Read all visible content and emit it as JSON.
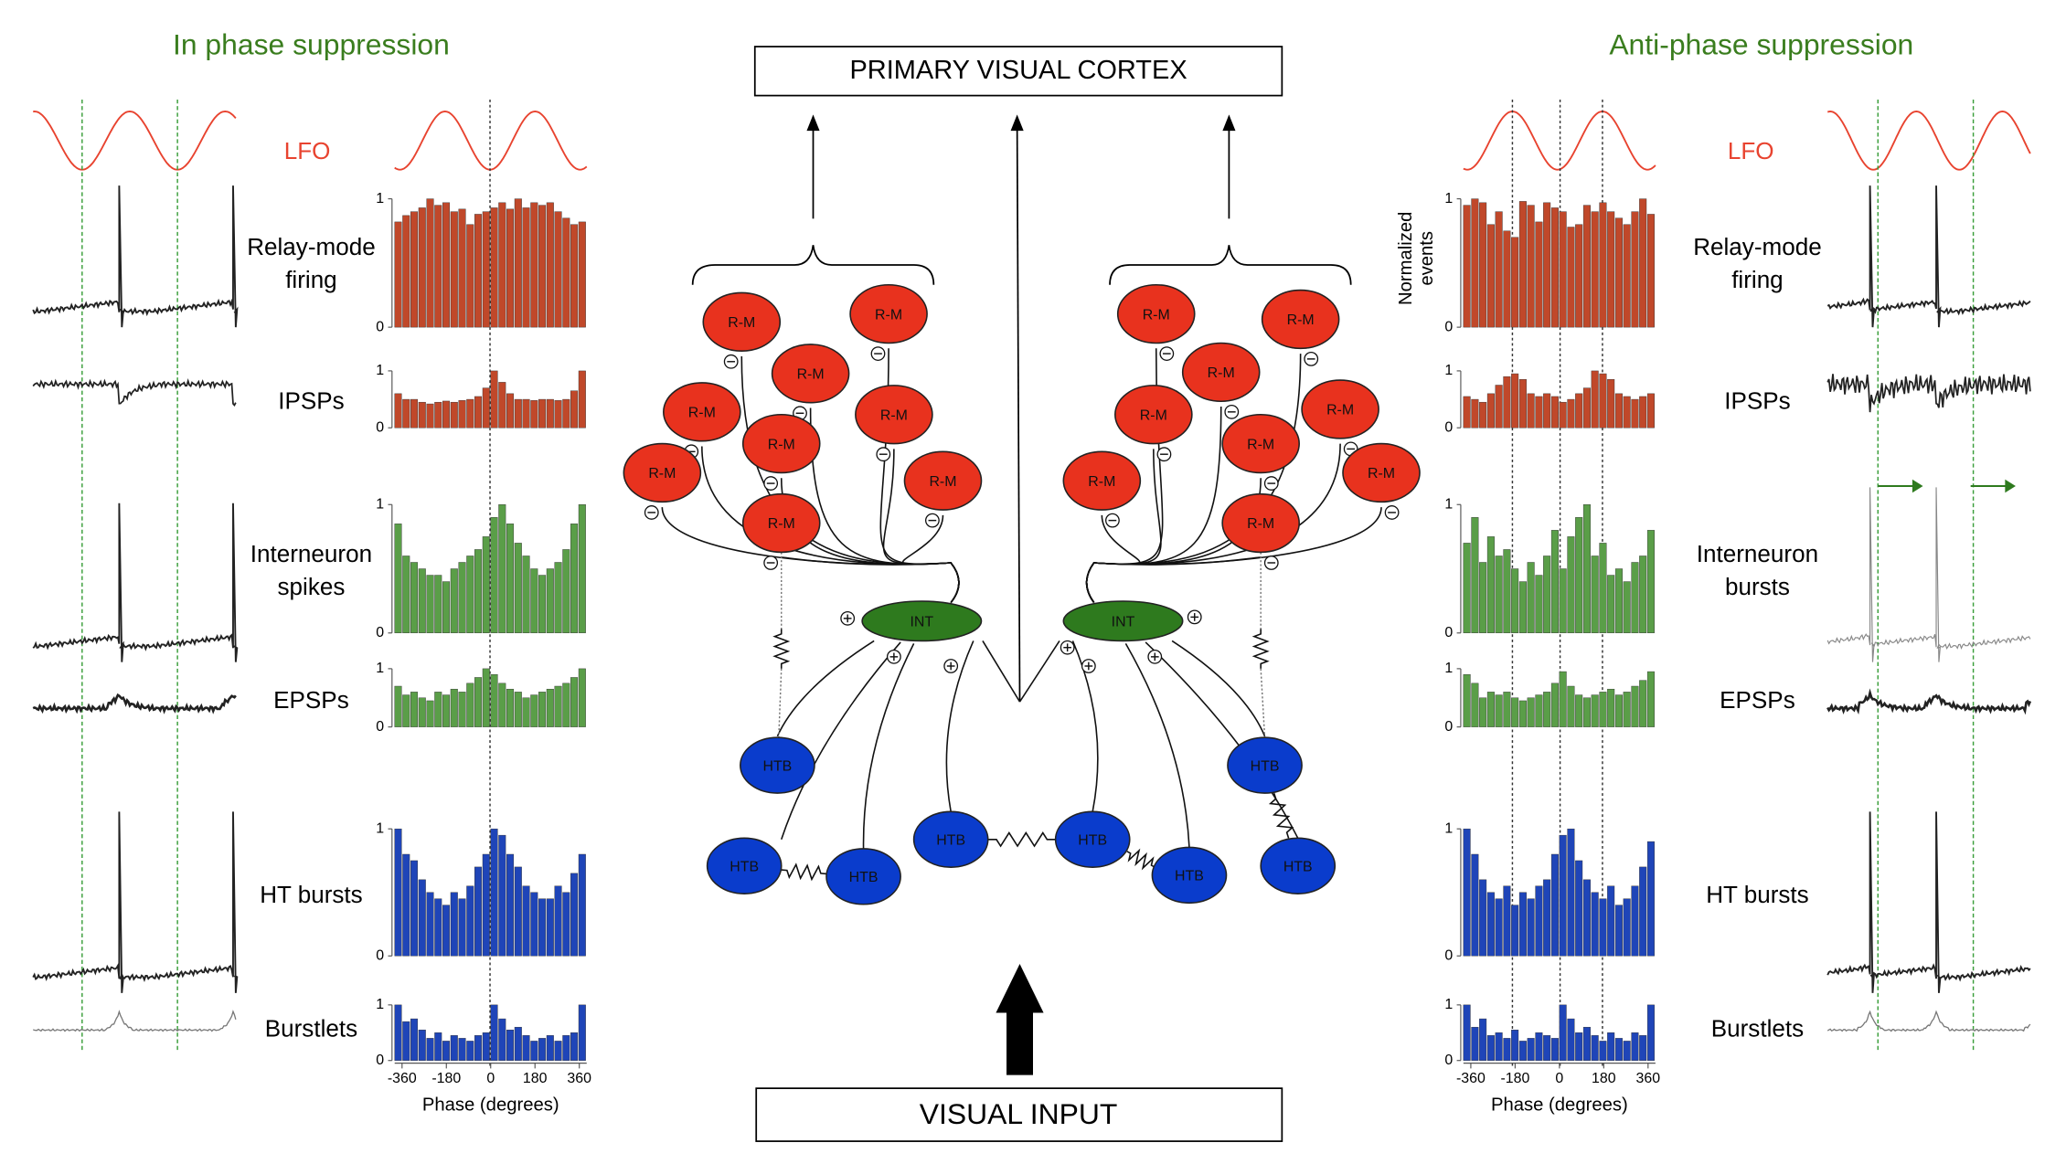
{
  "left": {
    "title": "In phase suppression",
    "lfo": "LFO",
    "rows": [
      {
        "label": [
          "Relay-mode",
          "firing"
        ],
        "color": "#c0482a",
        "values": [
          0.82,
          0.87,
          0.9,
          0.93,
          1,
          0.95,
          0.97,
          0.9,
          0.92,
          0.8,
          0.88,
          0.9,
          0.93,
          0.97,
          0.92,
          1,
          0.93,
          0.97,
          0.95,
          0.97,
          0.9,
          0.85,
          0.8,
          0.82
        ]
      },
      {
        "label": [
          "IPSPs"
        ],
        "color": "#c0482a",
        "values": [
          0.6,
          0.5,
          0.5,
          0.45,
          0.42,
          0.45,
          0.47,
          0.45,
          0.48,
          0.5,
          0.55,
          0.7,
          1,
          0.8,
          0.6,
          0.5,
          0.5,
          0.48,
          0.5,
          0.5,
          0.48,
          0.5,
          0.65,
          1
        ]
      },
      {
        "label": [
          "Interneuron",
          "spikes"
        ],
        "color": "#5a9e48",
        "values": [
          0.85,
          0.6,
          0.55,
          0.5,
          0.45,
          0.45,
          0.4,
          0.5,
          0.55,
          0.6,
          0.65,
          0.75,
          0.9,
          1,
          0.85,
          0.7,
          0.6,
          0.5,
          0.45,
          0.5,
          0.55,
          0.65,
          0.85,
          1
        ]
      },
      {
        "label": [
          "EPSPs"
        ],
        "color": "#5a9e48",
        "values": [
          0.7,
          0.55,
          0.6,
          0.5,
          0.45,
          0.6,
          0.55,
          0.65,
          0.6,
          0.75,
          0.85,
          1,
          0.9,
          0.75,
          0.65,
          0.6,
          0.5,
          0.55,
          0.6,
          0.65,
          0.7,
          0.75,
          0.85,
          1
        ]
      },
      {
        "label": [
          "HT bursts"
        ],
        "color": "#1f45b8",
        "values": [
          1,
          0.8,
          0.75,
          0.6,
          0.5,
          0.45,
          0.4,
          0.5,
          0.45,
          0.55,
          0.7,
          0.8,
          1,
          0.95,
          0.8,
          0.7,
          0.55,
          0.5,
          0.45,
          0.45,
          0.55,
          0.5,
          0.65,
          0.8
        ]
      },
      {
        "label": [
          "Burstlets"
        ],
        "color": "#1f45b8",
        "values": [
          1,
          0.7,
          0.75,
          0.55,
          0.4,
          0.5,
          0.35,
          0.45,
          0.4,
          0.35,
          0.45,
          0.5,
          1,
          0.75,
          0.55,
          0.6,
          0.45,
          0.35,
          0.4,
          0.45,
          0.35,
          0.45,
          0.5,
          1
        ]
      }
    ],
    "ylim": [
      0,
      1
    ],
    "yticks": [
      0,
      1
    ],
    "xlim": [
      -390,
      390
    ],
    "xticks": [
      -360,
      -180,
      0,
      180,
      360
    ],
    "xlabel": "Phase (degrees)"
  },
  "right": {
    "title": "Anti-phase suppression",
    "lfo": "LFO",
    "ylabel": [
      "Normalized",
      "events"
    ],
    "rows": [
      {
        "label": [
          "Relay-mode",
          "firing"
        ],
        "color": "#c0482a",
        "values": [
          0.95,
          1,
          0.97,
          0.8,
          0.9,
          0.75,
          0.7,
          0.98,
          0.95,
          0.82,
          0.97,
          0.93,
          0.9,
          0.78,
          0.8,
          0.95,
          0.9,
          0.97,
          0.9,
          0.85,
          0.8,
          0.9,
          1,
          0.88
        ]
      },
      {
        "label": [
          "IPSPs"
        ],
        "color": "#c0482a",
        "values": [
          0.55,
          0.5,
          0.45,
          0.6,
          0.75,
          0.9,
          0.95,
          0.85,
          0.6,
          0.55,
          0.6,
          0.55,
          0.45,
          0.5,
          0.6,
          0.7,
          1,
          0.95,
          0.85,
          0.6,
          0.55,
          0.5,
          0.55,
          0.6
        ]
      },
      {
        "label": [
          "Interneuron",
          "bursts"
        ],
        "color": "#5a9e48",
        "values": [
          0.7,
          0.9,
          0.55,
          0.75,
          0.6,
          0.65,
          0.5,
          0.4,
          0.55,
          0.45,
          0.6,
          0.8,
          0.5,
          0.75,
          0.9,
          1,
          0.6,
          0.7,
          0.45,
          0.5,
          0.4,
          0.55,
          0.6,
          0.8
        ]
      },
      {
        "label": [
          "EPSPs"
        ],
        "color": "#5a9e48",
        "values": [
          0.9,
          0.75,
          0.5,
          0.6,
          0.55,
          0.6,
          0.5,
          0.45,
          0.5,
          0.55,
          0.6,
          0.75,
          0.95,
          0.7,
          0.55,
          0.5,
          0.55,
          0.6,
          0.65,
          0.55,
          0.6,
          0.7,
          0.8,
          0.95
        ]
      },
      {
        "label": [
          "HT bursts"
        ],
        "color": "#1f45b8",
        "values": [
          1,
          0.8,
          0.6,
          0.5,
          0.45,
          0.55,
          0.4,
          0.5,
          0.45,
          0.55,
          0.6,
          0.8,
          0.95,
          1,
          0.75,
          0.6,
          0.5,
          0.45,
          0.55,
          0.4,
          0.45,
          0.55,
          0.7,
          0.9
        ]
      },
      {
        "label": [
          "Burstlets"
        ],
        "color": "#1f45b8",
        "values": [
          1,
          0.6,
          0.75,
          0.45,
          0.5,
          0.4,
          0.55,
          0.35,
          0.4,
          0.5,
          0.45,
          0.4,
          1,
          0.75,
          0.5,
          0.6,
          0.45,
          0.35,
          0.5,
          0.4,
          0.35,
          0.5,
          0.45,
          1
        ]
      }
    ],
    "ylim": [
      0,
      1
    ],
    "yticks": [
      0,
      1
    ],
    "xlim": [
      -390,
      390
    ],
    "xticks": [
      -360,
      -180,
      0,
      180,
      360
    ],
    "xlabel": "Phase (degrees)"
  },
  "center": {
    "top": "PRIMARY VISUAL CORTEX",
    "bottom": "VISUAL INPUT",
    "nodes": [
      {
        "label": "R-M",
        "color": "#e8321e"
      },
      {
        "label": "R-M",
        "color": "#e8321e"
      },
      {
        "label": "R-M",
        "color": "#e8321e"
      },
      {
        "label": "R-M",
        "color": "#e8321e"
      },
      {
        "label": "R-M",
        "color": "#e8321e"
      },
      {
        "label": "R-M",
        "color": "#e8321e"
      },
      {
        "label": "R-M",
        "color": "#e8321e"
      },
      {
        "label": "R-M",
        "color": "#e8321e"
      },
      {
        "label": "R-M",
        "color": "#e8321e"
      },
      {
        "label": "R-M",
        "color": "#e8321e"
      },
      {
        "label": "R-M",
        "color": "#e8321e"
      },
      {
        "label": "R-M",
        "color": "#e8321e"
      },
      {
        "label": "R-M",
        "color": "#e8321e"
      },
      {
        "label": "R-M",
        "color": "#e8321e"
      },
      {
        "label": "R-M",
        "color": "#e8321e"
      },
      {
        "label": "R-M",
        "color": "#e8321e"
      },
      {
        "label": "R-M",
        "color": "#e8321e"
      },
      {
        "label": "R-M",
        "color": "#e8321e"
      },
      {
        "label": "INT",
        "color": "#2e7a1e"
      },
      {
        "label": "INT",
        "color": "#2e7a1e"
      },
      {
        "label": "HTB",
        "color": "#0a3ccc"
      },
      {
        "label": "HTB",
        "color": "#0a3ccc"
      },
      {
        "label": "HTB",
        "color": "#0a3ccc"
      },
      {
        "label": "HTB",
        "color": "#0a3ccc"
      },
      {
        "label": "HTB",
        "color": "#0a3ccc"
      },
      {
        "label": "HTB",
        "color": "#0a3ccc"
      },
      {
        "label": "HTB",
        "color": "#0a3ccc"
      },
      {
        "label": "HTB",
        "color": "#0a3ccc"
      }
    ]
  }
}
